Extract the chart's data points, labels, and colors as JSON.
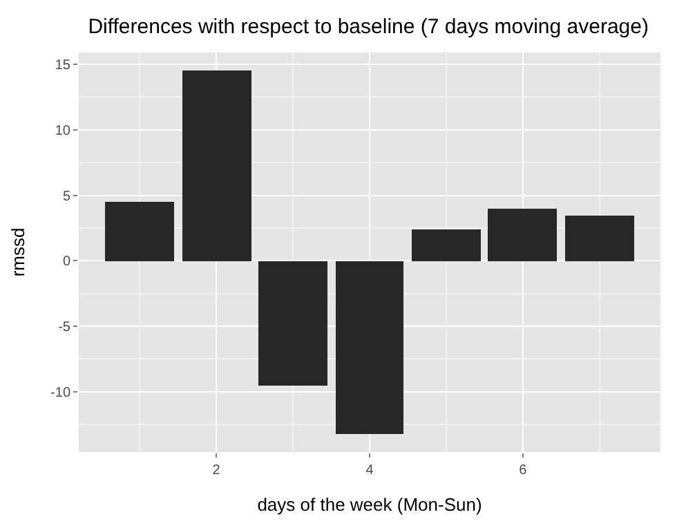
{
  "chart_data": {
    "type": "bar",
    "title": "Differences with respect to baseline (7 days moving average)",
    "xlabel": "days of the week (Mon-Sun)",
    "ylabel": "rmssd",
    "x": [
      1,
      2,
      3,
      4,
      5,
      6,
      7
    ],
    "series": [
      {
        "color": "#262626",
        "values": [
          4.5,
          14.5,
          -9.5,
          -13.2,
          2.4,
          4.0,
          3.4
        ]
      }
    ],
    "xlim": [
      0.205,
      7.795
    ],
    "xticks": [
      2,
      4,
      6
    ],
    "ylim": [
      -14.6,
      15.9
    ],
    "yticks": [
      -10,
      -5,
      0,
      5,
      10,
      15
    ],
    "grid": true
  }
}
